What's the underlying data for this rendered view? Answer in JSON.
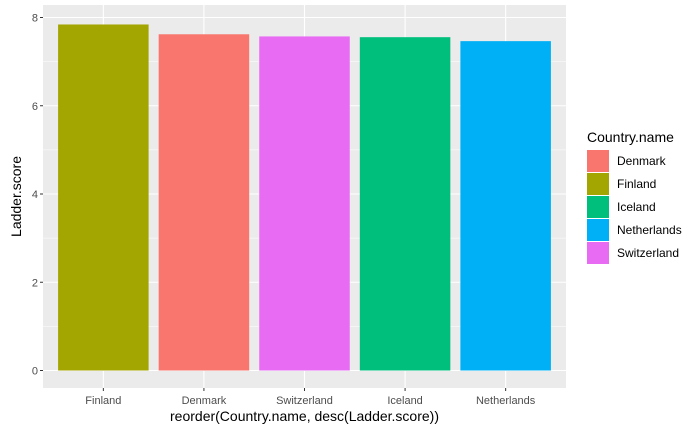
{
  "chart_data": {
    "type": "bar",
    "xlabel": "reorder(Country.name, desc(Ladder.score))",
    "ylabel": "Ladder.score",
    "ylim": [
      0,
      8
    ],
    "y_ticks": [
      "0",
      "2",
      "4",
      "6",
      "8"
    ],
    "categories": [
      "Finland",
      "Denmark",
      "Switzerland",
      "Iceland",
      "Netherlands"
    ],
    "values": [
      7.842,
      7.62,
      7.571,
      7.554,
      7.464
    ],
    "grid": true,
    "legend": {
      "title": "Country.name",
      "placement": "right",
      "entries": [
        {
          "label": "Denmark",
          "color": "#F8766D"
        },
        {
          "label": "Finland",
          "color": "#A3A500"
        },
        {
          "label": "Iceland",
          "color": "#00BF7D"
        },
        {
          "label": "Netherlands",
          "color": "#00B0F6"
        },
        {
          "label": "Switzerland",
          "color": "#E76BF3"
        }
      ]
    },
    "bar_colors": {
      "Denmark": "#F8766D",
      "Finland": "#A3A500",
      "Iceland": "#00BF7D",
      "Netherlands": "#00B0F6",
      "Switzerland": "#E76BF3"
    },
    "panel_background": "#EBEBEB",
    "gridline_color": "#FFFFFF"
  }
}
